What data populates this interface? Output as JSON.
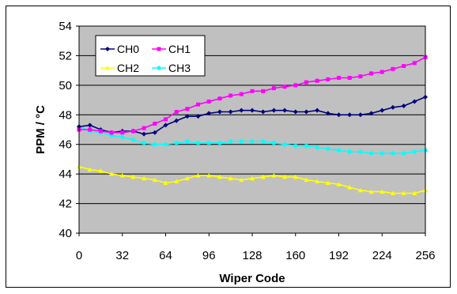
{
  "chart_data": {
    "type": "line",
    "title": "",
    "xlabel": "Wiper Code",
    "ylabel": "PPM / °C",
    "xlim": [
      0,
      256
    ],
    "ylim": [
      40,
      54
    ],
    "x_ticks": [
      "0",
      "32",
      "64",
      "96",
      "128",
      "160",
      "192",
      "224",
      "256"
    ],
    "y_ticks": [
      "40",
      "42",
      "44",
      "46",
      "48",
      "50",
      "52",
      "54"
    ],
    "grid": "horizontal",
    "legend_position": "top-left",
    "colors": {
      "plot_background": "#c0c0c0",
      "grid": "#000000"
    },
    "x": [
      0,
      8,
      16,
      24,
      32,
      40,
      48,
      56,
      64,
      72,
      80,
      88,
      96,
      104,
      112,
      120,
      128,
      136,
      144,
      152,
      160,
      168,
      176,
      184,
      192,
      200,
      208,
      216,
      224,
      232,
      240,
      248,
      256
    ],
    "series": [
      {
        "name": "CH0",
        "color": "#000080",
        "marker": "diamond",
        "values": [
          47.2,
          47.3,
          47.0,
          46.8,
          46.9,
          46.9,
          46.7,
          46.8,
          47.3,
          47.6,
          47.9,
          47.9,
          48.1,
          48.2,
          48.2,
          48.3,
          48.3,
          48.2,
          48.3,
          48.3,
          48.2,
          48.2,
          48.3,
          48.1,
          48.0,
          48.0,
          48.0,
          48.1,
          48.3,
          48.5,
          48.6,
          48.9,
          49.2
        ]
      },
      {
        "name": "CH1",
        "color": "#ff00ff",
        "marker": "square",
        "values": [
          47.0,
          47.0,
          46.9,
          46.8,
          46.8,
          46.9,
          47.1,
          47.4,
          47.7,
          48.2,
          48.4,
          48.7,
          48.9,
          49.1,
          49.3,
          49.4,
          49.6,
          49.6,
          49.8,
          49.9,
          50.0,
          50.2,
          50.3,
          50.4,
          50.5,
          50.5,
          50.6,
          50.8,
          50.9,
          51.1,
          51.3,
          51.5,
          51.9
        ]
      },
      {
        "name": "CH2",
        "color": "#ffff00",
        "marker": "triangle",
        "values": [
          44.5,
          44.3,
          44.2,
          44.0,
          43.9,
          43.8,
          43.7,
          43.6,
          43.4,
          43.5,
          43.7,
          43.9,
          43.9,
          43.8,
          43.7,
          43.6,
          43.7,
          43.8,
          43.9,
          43.8,
          43.8,
          43.6,
          43.5,
          43.4,
          43.3,
          43.1,
          42.9,
          42.8,
          42.8,
          42.7,
          42.7,
          42.7,
          42.9
        ]
      },
      {
        "name": "CH3",
        "color": "#00ffff",
        "marker": "star",
        "values": [
          47.2,
          46.9,
          46.8,
          46.6,
          46.5,
          46.3,
          46.1,
          46.0,
          46.0,
          46.1,
          46.2,
          46.1,
          46.1,
          46.1,
          46.2,
          46.2,
          46.2,
          46.2,
          46.1,
          46.0,
          45.9,
          45.9,
          45.8,
          45.7,
          45.6,
          45.5,
          45.5,
          45.4,
          45.4,
          45.4,
          45.4,
          45.5,
          45.6
        ]
      }
    ]
  }
}
